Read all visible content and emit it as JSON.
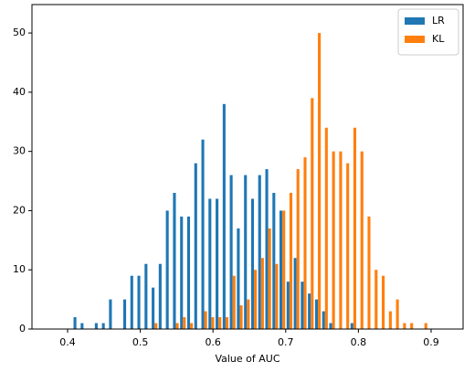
{
  "chart_data": {
    "type": "histogram",
    "x_label": "Value of AUC",
    "bins": [
      0.4072,
      0.417,
      0.4267,
      0.4365,
      0.4463,
      0.456,
      0.4658,
      0.4756,
      0.4854,
      0.4951,
      0.5049,
      0.5147,
      0.5244,
      0.5342,
      0.544,
      0.5538,
      0.5635,
      0.5733,
      0.5831,
      0.5928,
      0.6026,
      0.6124,
      0.6221,
      0.6319,
      0.6417,
      0.6515,
      0.6612,
      0.671,
      0.6808,
      0.6905,
      0.7003,
      0.7101,
      0.7198,
      0.7296,
      0.7394,
      0.7492,
      0.7589,
      0.7687,
      0.7785,
      0.7882,
      0.798,
      0.8078,
      0.8175,
      0.8273,
      0.8371,
      0.8469,
      0.8566,
      0.8664,
      0.8762,
      0.8859,
      0.8957
    ],
    "series": [
      {
        "name": "LR",
        "color": "#1f77b4",
        "values": [
          2,
          1,
          0,
          1,
          1,
          5,
          0,
          5,
          9,
          9,
          11,
          7,
          11,
          20,
          23,
          19,
          19,
          28,
          32,
          22,
          22,
          38,
          26,
          17,
          26,
          22,
          26,
          27,
          23,
          20,
          8,
          12,
          8,
          6,
          5,
          3,
          1,
          0,
          0,
          1,
          0,
          0,
          0,
          0,
          0,
          0,
          0,
          0,
          0,
          0
        ]
      },
      {
        "name": "KL",
        "color": "#ff7f0e",
        "values": [
          0,
          0,
          0,
          0,
          0,
          0,
          0,
          0,
          0,
          0,
          0,
          1,
          0,
          0,
          1,
          2,
          1,
          0,
          3,
          2,
          2,
          2,
          9,
          4,
          5,
          10,
          12,
          17,
          11,
          20,
          23,
          27,
          29,
          39,
          50,
          34,
          30,
          30,
          28,
          34,
          30,
          19,
          10,
          9,
          3,
          5,
          1,
          1,
          0,
          1
        ]
      }
    ],
    "xlim": [
      0.351,
      0.944
    ],
    "ylim": [
      0,
      54.8
    ],
    "xticks": [
      0.4,
      0.5,
      0.6,
      0.7,
      0.8,
      0.9
    ],
    "yticks": [
      0,
      10,
      20,
      30,
      40,
      50
    ],
    "legend": "upper right"
  }
}
